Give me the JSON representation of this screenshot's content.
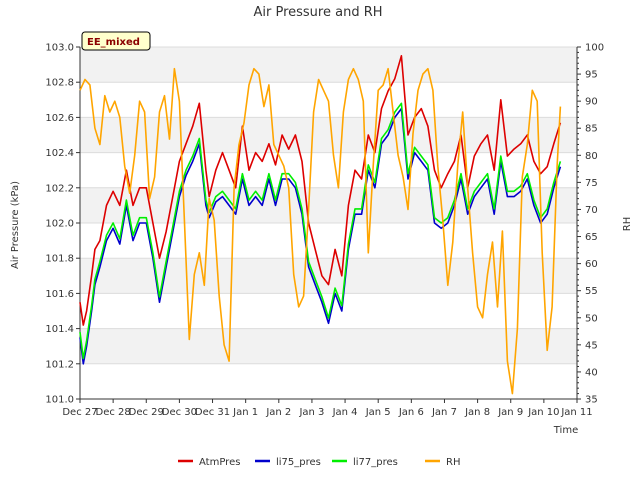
{
  "chart_data": {
    "type": "line",
    "title": "Air Pressure and RH",
    "badge": "EE_mixed",
    "xlabel": "Time",
    "ylabel_left": "Air Pressure (kPa)",
    "ylabel_right": "RH",
    "ylim_left": [
      101.0,
      103.0
    ],
    "ylim_right": [
      35,
      100
    ],
    "xlim": [
      0,
      15
    ],
    "x_ticks": [
      {
        "x": 0,
        "label": "Dec 27"
      },
      {
        "x": 1,
        "label": "Dec 28"
      },
      {
        "x": 2,
        "label": "Dec 29"
      },
      {
        "x": 3,
        "label": "Dec 30"
      },
      {
        "x": 4,
        "label": "Dec 31"
      },
      {
        "x": 5,
        "label": "Jan 1"
      },
      {
        "x": 6,
        "label": "Jan 2"
      },
      {
        "x": 7,
        "label": "Jan 3"
      },
      {
        "x": 8,
        "label": "Jan 4"
      },
      {
        "x": 9,
        "label": "Jan 5"
      },
      {
        "x": 10,
        "label": "Jan 6"
      },
      {
        "x": 11,
        "label": "Jan 7"
      },
      {
        "x": 12,
        "label": "Jan 8"
      },
      {
        "x": 13,
        "label": "Jan 9"
      },
      {
        "x": 14,
        "label": "Jan 10"
      },
      {
        "x": 15,
        "label": "Jan 11"
      }
    ],
    "y_ticks_left": [
      101.0,
      101.2,
      101.4,
      101.6,
      101.8,
      102.0,
      102.2,
      102.4,
      102.6,
      102.8,
      103.0
    ],
    "y_tick_labels_left": [
      "101.0",
      "101.2",
      "101.4",
      "101.6",
      "101.8",
      "102.0",
      "102.2",
      "102.4",
      "102.6",
      "102.8",
      "103.0"
    ],
    "y_ticks_right": [
      35,
      40,
      45,
      50,
      55,
      60,
      65,
      70,
      75,
      80,
      85,
      90,
      95,
      100
    ],
    "y_tick_labels_right": [
      "35",
      "40",
      "45",
      "50",
      "55",
      "60",
      "65",
      "70",
      "75",
      "80",
      "85",
      "90",
      "95",
      "100"
    ],
    "grid": true,
    "legend_position": "bottom",
    "series": [
      {
        "name": "AtmPres",
        "color": "#dd0000",
        "axis": "left",
        "x": [
          0.0,
          0.1,
          0.2,
          0.35,
          0.45,
          0.6,
          0.8,
          1.0,
          1.2,
          1.4,
          1.6,
          1.8,
          2.0,
          2.2,
          2.4,
          2.6,
          2.8,
          3.0,
          3.2,
          3.4,
          3.6,
          3.8,
          3.9,
          4.1,
          4.3,
          4.5,
          4.7,
          4.9,
          5.1,
          5.3,
          5.5,
          5.7,
          5.9,
          6.1,
          6.3,
          6.5,
          6.7,
          6.9,
          7.1,
          7.3,
          7.5,
          7.7,
          7.9,
          8.1,
          8.3,
          8.5,
          8.7,
          8.9,
          9.1,
          9.3,
          9.5,
          9.7,
          9.9,
          10.1,
          10.3,
          10.5,
          10.7,
          10.9,
          11.1,
          11.3,
          11.5,
          11.7,
          11.9,
          12.1,
          12.3,
          12.5,
          12.7,
          12.9,
          13.1,
          13.3,
          13.5,
          13.7,
          13.9,
          14.1,
          14.3,
          14.5
        ],
        "y": [
          101.55,
          101.42,
          101.5,
          101.7,
          101.85,
          101.9,
          102.1,
          102.18,
          102.1,
          102.3,
          102.1,
          102.2,
          102.2,
          102.0,
          101.8,
          101.95,
          102.15,
          102.35,
          102.45,
          102.55,
          102.68,
          102.3,
          102.15,
          102.3,
          102.4,
          102.3,
          102.2,
          102.55,
          102.3,
          102.4,
          102.35,
          102.45,
          102.33,
          102.5,
          102.42,
          102.5,
          102.35,
          102.0,
          101.85,
          101.7,
          101.65,
          101.85,
          101.7,
          102.1,
          102.3,
          102.25,
          102.5,
          102.4,
          102.65,
          102.75,
          102.82,
          102.95,
          102.5,
          102.6,
          102.65,
          102.55,
          102.3,
          102.2,
          102.28,
          102.35,
          102.5,
          102.2,
          102.38,
          102.45,
          102.5,
          102.3,
          102.7,
          102.38,
          102.42,
          102.45,
          102.5,
          102.35,
          102.28,
          102.32,
          102.45,
          102.57
        ]
      },
      {
        "name": "li75_pres",
        "color": "#0000cc",
        "axis": "left",
        "x": [
          0.0,
          0.1,
          0.2,
          0.35,
          0.45,
          0.6,
          0.8,
          1.0,
          1.2,
          1.4,
          1.6,
          1.8,
          2.0,
          2.2,
          2.4,
          2.6,
          2.8,
          3.0,
          3.2,
          3.4,
          3.6,
          3.8,
          3.9,
          4.1,
          4.3,
          4.5,
          4.7,
          4.9,
          5.1,
          5.3,
          5.5,
          5.7,
          5.9,
          6.1,
          6.3,
          6.5,
          6.7,
          6.9,
          7.1,
          7.3,
          7.5,
          7.7,
          7.9,
          8.1,
          8.3,
          8.5,
          8.7,
          8.9,
          9.1,
          9.3,
          9.5,
          9.7,
          9.9,
          10.1,
          10.3,
          10.5,
          10.7,
          10.9,
          11.1,
          11.3,
          11.5,
          11.7,
          11.9,
          12.1,
          12.3,
          12.5,
          12.7,
          12.9,
          13.1,
          13.3,
          13.5,
          13.7,
          13.9,
          14.1,
          14.3,
          14.5
        ],
        "y": [
          101.35,
          101.2,
          101.3,
          101.5,
          101.65,
          101.75,
          101.9,
          101.97,
          101.88,
          102.1,
          101.9,
          102.0,
          102.0,
          101.8,
          101.55,
          101.75,
          101.95,
          102.15,
          102.27,
          102.35,
          102.45,
          102.1,
          102.03,
          102.12,
          102.15,
          102.1,
          102.05,
          102.25,
          102.1,
          102.15,
          102.1,
          102.25,
          102.1,
          102.25,
          102.25,
          102.2,
          102.05,
          101.75,
          101.65,
          101.55,
          101.43,
          101.6,
          101.5,
          101.85,
          102.05,
          102.05,
          102.3,
          102.2,
          102.45,
          102.5,
          102.6,
          102.65,
          102.25,
          102.4,
          102.35,
          102.3,
          102.0,
          101.97,
          102.0,
          102.1,
          102.25,
          102.05,
          102.15,
          102.2,
          102.25,
          102.05,
          102.35,
          102.15,
          102.15,
          102.18,
          102.25,
          102.1,
          102.0,
          102.05,
          102.2,
          102.32
        ]
      },
      {
        "name": "li77_pres",
        "color": "#00ee00",
        "axis": "left",
        "x": [
          0.0,
          0.1,
          0.2,
          0.35,
          0.45,
          0.6,
          0.8,
          1.0,
          1.2,
          1.4,
          1.6,
          1.8,
          2.0,
          2.2,
          2.4,
          2.6,
          2.8,
          3.0,
          3.2,
          3.4,
          3.6,
          3.8,
          3.9,
          4.1,
          4.3,
          4.5,
          4.7,
          4.9,
          5.1,
          5.3,
          5.5,
          5.7,
          5.9,
          6.1,
          6.3,
          6.5,
          6.7,
          6.9,
          7.1,
          7.3,
          7.5,
          7.7,
          7.9,
          8.1,
          8.3,
          8.5,
          8.7,
          8.9,
          9.1,
          9.3,
          9.5,
          9.7,
          9.9,
          10.1,
          10.3,
          10.5,
          10.7,
          10.9,
          11.1,
          11.3,
          11.5,
          11.7,
          11.9,
          12.1,
          12.3,
          12.5,
          12.7,
          12.9,
          13.1,
          13.3,
          13.5,
          13.7,
          13.9,
          14.1,
          14.3,
          14.5
        ],
        "y": [
          101.38,
          101.23,
          101.33,
          101.53,
          101.68,
          101.78,
          101.93,
          102.0,
          101.91,
          102.13,
          101.93,
          102.03,
          102.03,
          101.83,
          101.58,
          101.78,
          101.98,
          102.18,
          102.3,
          102.38,
          102.48,
          102.13,
          102.06,
          102.15,
          102.18,
          102.13,
          102.08,
          102.28,
          102.13,
          102.18,
          102.13,
          102.28,
          102.13,
          102.28,
          102.28,
          102.23,
          102.08,
          101.78,
          101.68,
          101.58,
          101.46,
          101.63,
          101.53,
          101.88,
          102.08,
          102.08,
          102.33,
          102.23,
          102.48,
          102.53,
          102.63,
          102.68,
          102.28,
          102.43,
          102.38,
          102.33,
          102.03,
          102.0,
          102.03,
          102.13,
          102.28,
          102.08,
          102.18,
          102.23,
          102.28,
          102.08,
          102.38,
          102.18,
          102.18,
          102.21,
          102.28,
          102.13,
          102.03,
          102.08,
          102.23,
          102.35
        ]
      },
      {
        "name": "RH",
        "color": "#ffa500",
        "axis": "right",
        "x": [
          0.0,
          0.15,
          0.3,
          0.45,
          0.6,
          0.75,
          0.9,
          1.05,
          1.2,
          1.35,
          1.5,
          1.65,
          1.8,
          1.95,
          2.1,
          2.25,
          2.4,
          2.55,
          2.7,
          2.85,
          3.0,
          3.15,
          3.3,
          3.45,
          3.6,
          3.75,
          3.9,
          4.05,
          4.2,
          4.35,
          4.5,
          4.65,
          4.8,
          4.95,
          5.1,
          5.25,
          5.4,
          5.55,
          5.7,
          5.85,
          6.0,
          6.15,
          6.3,
          6.45,
          6.6,
          6.75,
          6.9,
          7.05,
          7.2,
          7.35,
          7.5,
          7.65,
          7.8,
          7.95,
          8.1,
          8.25,
          8.4,
          8.55,
          8.7,
          8.85,
          9.0,
          9.15,
          9.3,
          9.45,
          9.6,
          9.75,
          9.9,
          10.05,
          10.2,
          10.35,
          10.5,
          10.65,
          10.8,
          10.95,
          11.1,
          11.25,
          11.4,
          11.55,
          11.7,
          11.85,
          12.0,
          12.15,
          12.3,
          12.45,
          12.6,
          12.75,
          12.9,
          13.05,
          13.2,
          13.35,
          13.5,
          13.65,
          13.8,
          13.95,
          14.1,
          14.25,
          14.4,
          14.5
        ],
        "y": [
          92,
          94,
          93,
          85,
          82,
          91,
          88,
          90,
          87,
          78,
          73,
          80,
          90,
          88,
          72,
          76,
          88,
          91,
          83,
          96,
          90,
          68,
          46,
          58,
          62,
          56,
          72,
          68,
          54,
          45,
          42,
          74,
          82,
          86,
          93,
          96,
          95,
          89,
          93,
          82,
          80,
          78,
          74,
          58,
          52,
          54,
          70,
          88,
          94,
          92,
          90,
          80,
          74,
          88,
          94,
          96,
          94,
          90,
          62,
          78,
          92,
          93,
          96,
          88,
          80,
          76,
          70,
          84,
          92,
          95,
          96,
          92,
          78,
          68,
          56,
          64,
          78,
          88,
          74,
          62,
          52,
          50,
          58,
          64,
          52,
          66,
          42,
          36,
          48,
          76,
          82,
          92,
          90,
          62,
          44,
          52,
          78,
          89
        ]
      }
    ]
  }
}
